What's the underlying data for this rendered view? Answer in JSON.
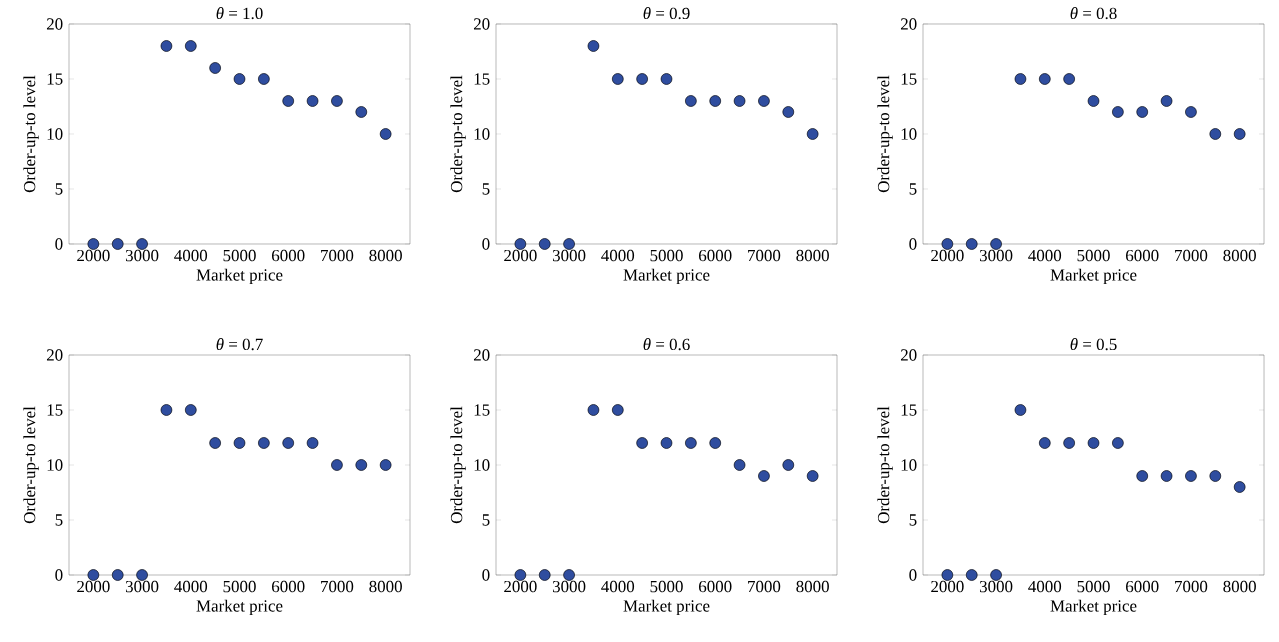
{
  "chart_data": [
    {
      "type": "scatter",
      "title": "*θ* = 1.0",
      "xlabel": "Market price",
      "ylabel": "Order-up-to level",
      "color": "#2f4d9f",
      "marker": "circle",
      "xlim": [
        1500,
        8500
      ],
      "ylim": [
        0,
        20
      ],
      "xticks": [
        2000,
        3000,
        4000,
        5000,
        6000,
        7000,
        8000
      ],
      "yticks": [
        0,
        5,
        10,
        15,
        20
      ],
      "x": [
        2000,
        2500,
        3000,
        3500,
        4000,
        4500,
        5000,
        5500,
        6000,
        6500,
        7000,
        7500,
        8000
      ],
      "values": [
        0,
        0,
        0,
        18,
        18,
        16,
        15,
        15,
        13,
        13,
        13,
        12,
        10
      ]
    },
    {
      "type": "scatter",
      "title": "*θ* = 0.9",
      "xlabel": "Market price",
      "ylabel": "Order-up-to level",
      "color": "#2f4d9f",
      "marker": "circle",
      "xlim": [
        1500,
        8500
      ],
      "ylim": [
        0,
        20
      ],
      "xticks": [
        2000,
        3000,
        4000,
        5000,
        6000,
        7000,
        8000
      ],
      "yticks": [
        0,
        5,
        10,
        15,
        20
      ],
      "x": [
        2000,
        2500,
        3000,
        3500,
        4000,
        4500,
        5000,
        5500,
        6000,
        6500,
        7000,
        7500,
        8000
      ],
      "values": [
        0,
        0,
        0,
        18,
        15,
        15,
        15,
        13,
        13,
        13,
        13,
        12,
        10
      ]
    },
    {
      "type": "scatter",
      "title": "*θ* = 0.8",
      "xlabel": "Market price",
      "ylabel": "Order-up-to level",
      "color": "#2f4d9f",
      "marker": "circle",
      "xlim": [
        1500,
        8500
      ],
      "ylim": [
        0,
        20
      ],
      "xticks": [
        2000,
        3000,
        4000,
        5000,
        6000,
        7000,
        8000
      ],
      "yticks": [
        0,
        5,
        10,
        15,
        20
      ],
      "x": [
        2000,
        2500,
        3000,
        3500,
        4000,
        4500,
        5000,
        5500,
        6000,
        6500,
        7000,
        7500,
        8000
      ],
      "values": [
        0,
        0,
        0,
        15,
        15,
        15,
        13,
        12,
        12,
        13,
        12,
        10,
        10
      ]
    },
    {
      "type": "scatter",
      "title": "*θ* = 0.7",
      "xlabel": "Market price",
      "ylabel": "Order-up-to level",
      "color": "#2f4d9f",
      "marker": "circle",
      "xlim": [
        1500,
        8500
      ],
      "ylim": [
        0,
        20
      ],
      "xticks": [
        2000,
        3000,
        4000,
        5000,
        6000,
        7000,
        8000
      ],
      "yticks": [
        0,
        5,
        10,
        15,
        20
      ],
      "x": [
        2000,
        2500,
        3000,
        3500,
        4000,
        4500,
        5000,
        5500,
        6000,
        6500,
        7000,
        7500,
        8000
      ],
      "values": [
        0,
        0,
        0,
        15,
        15,
        12,
        12,
        12,
        12,
        12,
        10,
        10,
        10
      ]
    },
    {
      "type": "scatter",
      "title": "*θ* = 0.6",
      "xlabel": "Market price",
      "ylabel": "Order-up-to level",
      "color": "#2f4d9f",
      "marker": "circle",
      "xlim": [
        1500,
        8500
      ],
      "ylim": [
        0,
        20
      ],
      "xticks": [
        2000,
        3000,
        4000,
        5000,
        6000,
        7000,
        8000
      ],
      "yticks": [
        0,
        5,
        10,
        15,
        20
      ],
      "x": [
        2000,
        2500,
        3000,
        3500,
        4000,
        4500,
        5000,
        5500,
        6000,
        6500,
        7000,
        7500,
        8000
      ],
      "values": [
        0,
        0,
        0,
        15,
        15,
        12,
        12,
        12,
        12,
        10,
        9,
        10,
        9
      ]
    },
    {
      "type": "scatter",
      "title": "*θ* = 0.5",
      "xlabel": "Market price",
      "ylabel": "Order-up-to level",
      "color": "#2f4d9f",
      "marker": "circle",
      "xlim": [
        1500,
        8500
      ],
      "ylim": [
        0,
        20
      ],
      "xticks": [
        2000,
        3000,
        4000,
        5000,
        6000,
        7000,
        8000
      ],
      "yticks": [
        0,
        5,
        10,
        15,
        20
      ],
      "x": [
        2000,
        2500,
        3000,
        3500,
        4000,
        4500,
        5000,
        5500,
        6000,
        6500,
        7000,
        7500,
        8000
      ],
      "values": [
        0,
        0,
        0,
        15,
        12,
        12,
        12,
        12,
        9,
        9,
        9,
        9,
        8
      ]
    }
  ]
}
